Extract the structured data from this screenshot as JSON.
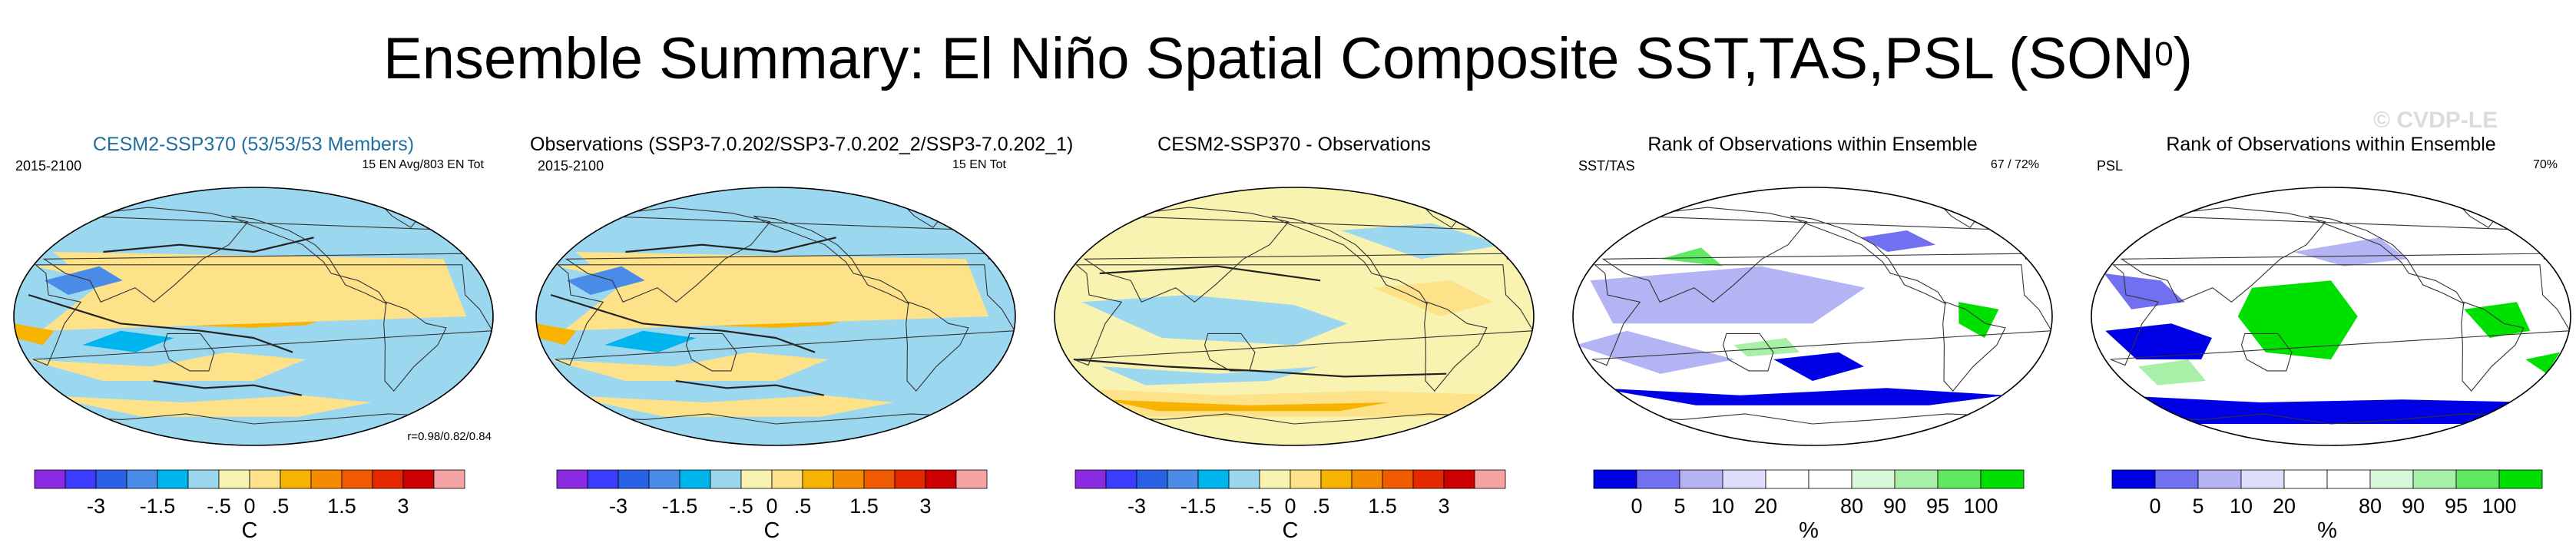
{
  "figure": {
    "title_main": "Ensemble Summary: El Niño Spatial Composite SST,TAS,PSL (SON",
    "title_sup": "0",
    "title_end": ")",
    "watermark": "© CVDP-LE"
  },
  "colors": {
    "sst_cmap": [
      "#8a2be2",
      "#3c3cff",
      "#2a62e6",
      "#4a8ce8",
      "#00b4ee",
      "#9cd7f0",
      "#f8f3b0",
      "#fde28a",
      "#f8b200",
      "#f58a00",
      "#f05a00",
      "#e52800",
      "#cc0000",
      "#f6a3a3"
    ],
    "rank_cmap": [
      "#0000e6",
      "#7070f0",
      "#b4b4f5",
      "#dedefa",
      "#ffffff",
      "#ffffff",
      "#d8f8d8",
      "#a8f0a8",
      "#60e860",
      "#00e000"
    ]
  },
  "panels": [
    {
      "title": "CESM2-SSP370 (53/53/53 Members)",
      "left_label": "2015-2100",
      "right_label": "15 EN Avg/803 EN Tot",
      "corner_text": "r=0.98/0.82/0.84",
      "map_kind": "sst",
      "colorbar": {
        "ticks": [
          "-3",
          "-1.5",
          "-.5",
          "0",
          ".5",
          "1.5",
          "3"
        ],
        "unit": "C"
      }
    },
    {
      "title": "Observations (SSP3-7.0.202/SSP3-7.0.202_2/SSP3-7.0.202_1)",
      "left_label": "2015-2100",
      "right_label": "15 EN Tot",
      "corner_text": "",
      "map_kind": "sst",
      "colorbar": {
        "ticks": [
          "-3",
          "-1.5",
          "-.5",
          "0",
          ".5",
          "1.5",
          "3"
        ],
        "unit": "C"
      }
    },
    {
      "title": "CESM2-SSP370 - Observations",
      "left_label": "",
      "right_label": "",
      "corner_text": "",
      "map_kind": "diff",
      "colorbar": {
        "ticks": [
          "-3",
          "-1.5",
          "-.5",
          "0",
          ".5",
          "1.5",
          "3"
        ],
        "unit": "C"
      }
    },
    {
      "title": "Rank of Observations within Ensemble",
      "left_label": "SST/TAS",
      "right_label": "67 /  72%",
      "corner_text": "",
      "map_kind": "rank",
      "colorbar": {
        "ticks": [
          "0",
          "5",
          "10",
          "20",
          "80",
          "90",
          "95",
          "100"
        ],
        "unit": "%"
      }
    },
    {
      "title": "Rank of Observations within Ensemble",
      "left_label": "PSL",
      "right_label": "70%",
      "corner_text": "",
      "map_kind": "rank2",
      "colorbar": {
        "ticks": [
          "0",
          "5",
          "10",
          "20",
          "80",
          "90",
          "95",
          "100"
        ],
        "unit": "%"
      }
    }
  ],
  "chart_data": [
    {
      "type": "heatmap",
      "title": "CESM2-SSP370 (53/53/53 Members)",
      "projection": "Robinson, Pacific-centered",
      "colorbar_ticks": [
        -3,
        -1.5,
        -0.5,
        0,
        0.5,
        1.5,
        3
      ],
      "unit": "C"
    },
    {
      "type": "heatmap",
      "title": "Observations (SSP3-7.0.202/SSP3-7.0.202_2/SSP3-7.0.202_1)",
      "projection": "Robinson, Pacific-centered",
      "colorbar_ticks": [
        -3,
        -1.5,
        -0.5,
        0,
        0.5,
        1.5,
        3
      ],
      "unit": "C"
    },
    {
      "type": "heatmap",
      "title": "CESM2-SSP370 - Observations",
      "projection": "Robinson, Pacific-centered",
      "colorbar_ticks": [
        -3,
        -1.5,
        -0.5,
        0,
        0.5,
        1.5,
        3
      ],
      "unit": "C"
    },
    {
      "type": "heatmap",
      "title": "Rank of Observations within Ensemble",
      "variable": "SST/TAS",
      "projection": "Robinson, Pacific-centered",
      "colorbar_ticks": [
        0,
        5,
        10,
        20,
        80,
        90,
        95,
        100
      ],
      "unit": "%"
    },
    {
      "type": "heatmap",
      "title": "Rank of Observations within Ensemble",
      "variable": "PSL",
      "projection": "Robinson, Pacific-centered",
      "colorbar_ticks": [
        0,
        5,
        10,
        20,
        80,
        90,
        95,
        100
      ],
      "unit": "%"
    }
  ]
}
